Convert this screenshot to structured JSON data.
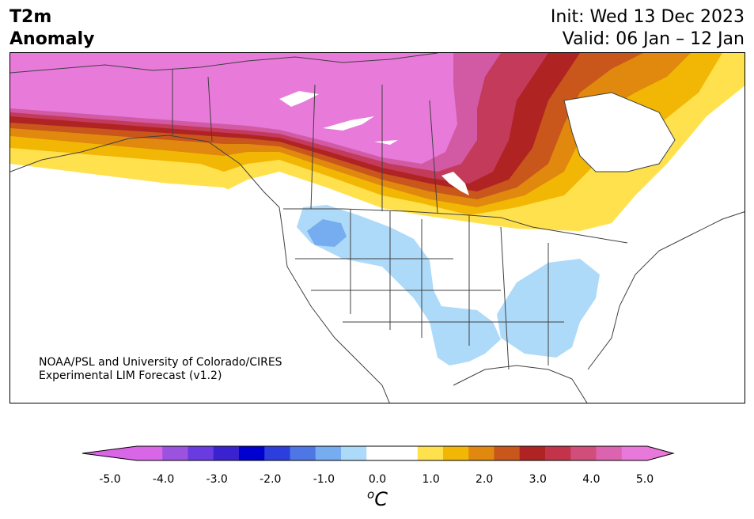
{
  "title": {
    "left_line1": "T2m",
    "left_line2": "Anomaly",
    "right_line1": "Init: Wed 13 Dec 2023",
    "right_line2": "Valid: 06 Jan – 12 Jan"
  },
  "credit": {
    "line1": "NOAA/PSL and University of Colorado/CIRES",
    "line2": "Experimental LIM Forecast (v1.2)"
  },
  "colorbar": {
    "unit_base": "C",
    "unit_sup": "o",
    "ticks": [
      "-5.0",
      "-4.0",
      "-3.0",
      "-2.0",
      "-1.0",
      "0.0",
      "1.0",
      "2.0",
      "3.0",
      "4.0",
      "5.0"
    ],
    "colors": [
      "#d966e6",
      "#9b52df",
      "#6a3be0",
      "#3a22d0",
      "#0000d0",
      "#2c3fdc",
      "#4e76e4",
      "#76adf0",
      "#aedaf9",
      "#ffffff",
      "#ffffff",
      "#ffe14d",
      "#f2b705",
      "#e0890e",
      "#c9561b",
      "#b02323",
      "#c3344a",
      "#d14d7a",
      "#dc63af",
      "#e878d9"
    ]
  },
  "map_colors": {
    "pink": "#e87ad9",
    "magenta": "#d25aa4",
    "rose": "#c43a5a",
    "darkred": "#b02323",
    "rust": "#c9561b",
    "orange": "#e0890e",
    "gold": "#f2b705",
    "yellow": "#ffe14d",
    "lightblue": "#aedaf9",
    "blue": "#76adf0",
    "coast": "#404040"
  }
}
